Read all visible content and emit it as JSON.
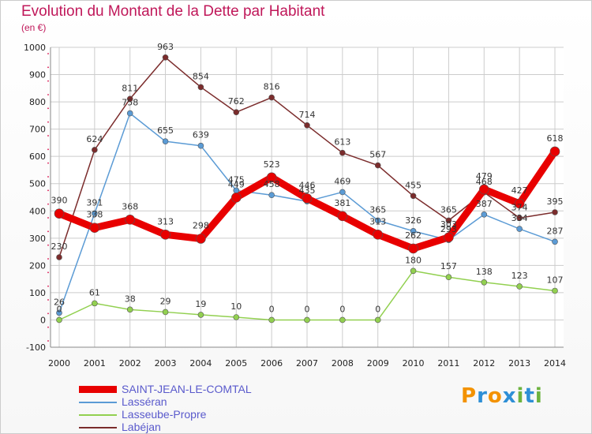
{
  "title": "Evolution du Montant de la Dette par Habitant",
  "unit_label": "(en €)",
  "logo": {
    "text": "Proxiti",
    "letters": [
      "P",
      "r",
      "o",
      "x",
      "i",
      "t",
      "i"
    ]
  },
  "colors": {
    "title": "#c0185a",
    "grid": "#cccccc",
    "axis_marks": "#e04070"
  },
  "chart_data": {
    "type": "line",
    "x": [
      2000,
      2001,
      2002,
      2003,
      2004,
      2005,
      2006,
      2007,
      2008,
      2009,
      2010,
      2011,
      2012,
      2013,
      2014
    ],
    "ylim": [
      -100,
      1000
    ],
    "yticks": [
      -100,
      0,
      100,
      200,
      300,
      400,
      500,
      600,
      700,
      800,
      900,
      1000
    ],
    "grid": true,
    "legend": "bottom-left",
    "series": [
      {
        "name": "SAINT-JEAN-LE-COMTAL",
        "color": "#e80000",
        "highlight": true,
        "values": [
          390,
          338,
          368,
          313,
          298,
          449,
          523,
          446,
          381,
          313,
          262,
          303,
          479,
          427,
          618
        ]
      },
      {
        "name": "Lasséran",
        "color": "#5b9bd5",
        "highlight": false,
        "values": [
          26,
          391,
          758,
          655,
          639,
          475,
          458,
          435,
          469,
          365,
          326,
          293,
          387,
          334,
          287
        ]
      },
      {
        "name": "Lasseube-Propre",
        "color": "#92d050",
        "highlight": false,
        "values": [
          0,
          61,
          38,
          29,
          19,
          10,
          0,
          0,
          0,
          0,
          180,
          157,
          138,
          123,
          107
        ]
      },
      {
        "name": "Labéjan",
        "color": "#7b2c2c",
        "highlight": false,
        "values": [
          230,
          624,
          811,
          963,
          854,
          762,
          816,
          714,
          613,
          567,
          455,
          365,
          468,
          374,
          395
        ]
      }
    ]
  }
}
